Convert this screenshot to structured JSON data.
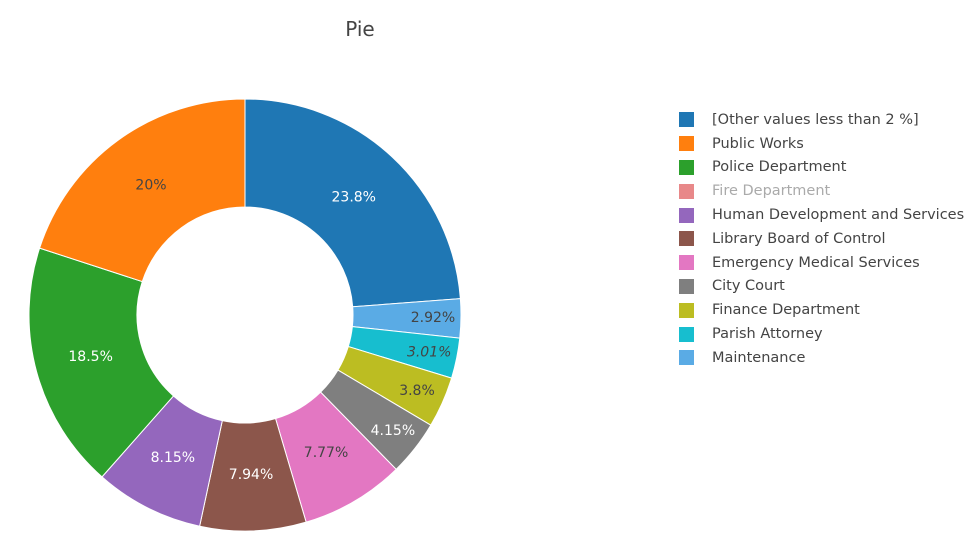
{
  "chart_data": {
    "type": "pie",
    "title": "Pie",
    "hole": true,
    "legend_position": "right",
    "slices": [
      {
        "label": "[Other values less than 2 %]",
        "value": 23.8,
        "text": "23.8%",
        "color": "#1f77b4",
        "text_color": "#ffffff",
        "italic": false
      },
      {
        "label": "Maintenance",
        "value": 2.92,
        "text": "2.92%",
        "color": "#5aabe5",
        "text_color": "#444444",
        "italic": false
      },
      {
        "label": "Parish Attorney",
        "value": 3.01,
        "text": "3.01%",
        "color": "#17becf",
        "text_color": "#444444",
        "italic": true
      },
      {
        "label": "Finance Department",
        "value": 3.8,
        "text": "3.8%",
        "color": "#bcbd22",
        "text_color": "#444444",
        "italic": false
      },
      {
        "label": "City Court",
        "value": 4.15,
        "text": "4.15%",
        "color": "#7f7f7f",
        "text_color": "#ffffff",
        "italic": false
      },
      {
        "label": "Emergency Medical Services",
        "value": 7.77,
        "text": "7.77%",
        "color": "#e377c2",
        "text_color": "#444444",
        "italic": false
      },
      {
        "label": "Library Board of Control",
        "value": 7.94,
        "text": "7.94%",
        "color": "#8c564b",
        "text_color": "#ffffff",
        "italic": false
      },
      {
        "label": "Human Development and Services",
        "value": 8.15,
        "text": "8.15%",
        "color": "#9467bd",
        "text_color": "#ffffff",
        "italic": false
      },
      {
        "label": "Police Department",
        "value": 18.5,
        "text": "18.5%",
        "color": "#2ca02c",
        "text_color": "#ffffff",
        "italic": false
      },
      {
        "label": "Public Works",
        "value": 20.0,
        "text": "20%",
        "color": "#ff7f0e",
        "text_color": "#444444",
        "italic": false
      }
    ],
    "legend": [
      {
        "label": "[Other values less than 2 %]",
        "color": "#1f77b4",
        "visible": true
      },
      {
        "label": "Public Works",
        "color": "#ff7f0e",
        "visible": true
      },
      {
        "label": "Police Department",
        "color": "#2ca02c",
        "visible": true
      },
      {
        "label": "Fire Department",
        "color": "#d62728",
        "visible": false
      },
      {
        "label": "Human Development and Services",
        "color": "#9467bd",
        "visible": true
      },
      {
        "label": "Library Board of Control",
        "color": "#8c564b",
        "visible": true
      },
      {
        "label": "Emergency Medical Services",
        "color": "#e377c2",
        "visible": true
      },
      {
        "label": "City Court",
        "color": "#7f7f7f",
        "visible": true
      },
      {
        "label": "Finance Department",
        "color": "#bcbd22",
        "visible": true
      },
      {
        "label": "Parish Attorney",
        "color": "#17becf",
        "visible": true
      },
      {
        "label": "Maintenance",
        "color": "#5aabe5",
        "visible": true
      }
    ]
  }
}
